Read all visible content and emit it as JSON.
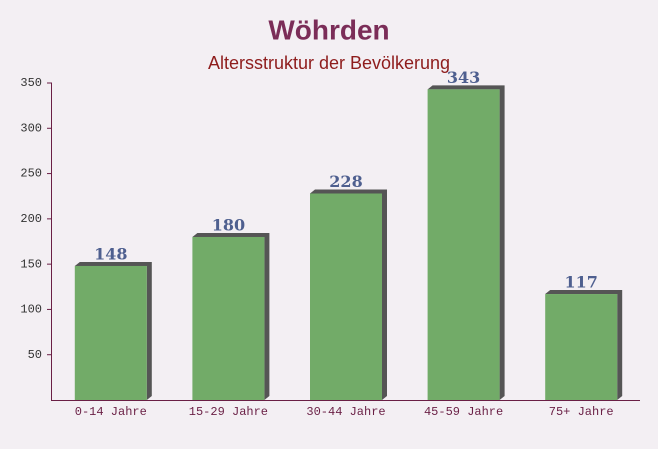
{
  "chart_data": {
    "type": "bar",
    "title": "Wöhrden",
    "subtitle": "Altersstruktur der Bevölkerung",
    "categories": [
      "0-14 Jahre",
      "15-29 Jahre",
      "30-44 Jahre",
      "45-59 Jahre",
      "75+ Jahre"
    ],
    "values": [
      148,
      180,
      228,
      343,
      117
    ],
    "color": "#6aa760",
    "ylim": [
      0,
      350
    ],
    "yticks": [
      50,
      100,
      150,
      200,
      250,
      300,
      350
    ],
    "grid": false
  }
}
